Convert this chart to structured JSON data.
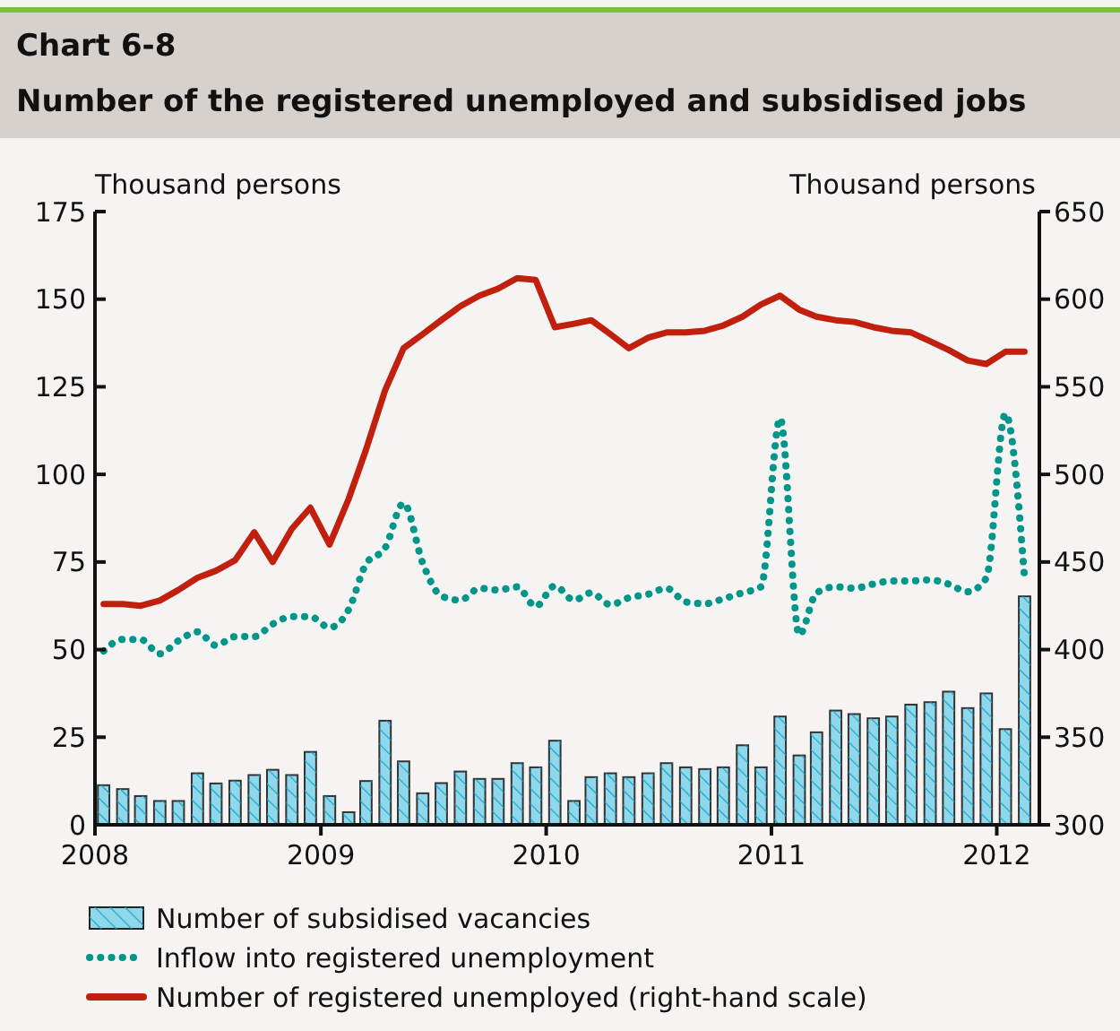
{
  "chart_data": {
    "type": "bar",
    "title": "Chart 6-8",
    "subtitle": "Number of the registered unemployed and subsidised jobs",
    "ylabel": "Thousand persons",
    "y2label": "Thousand persons",
    "x": [
      "2008-01-15",
      "2008-02-15",
      "2008-03-15",
      "2008-04-15",
      "2008-05-15",
      "2008-06-15",
      "2008-07-15",
      "2008-08-15",
      "2008-09-15",
      "2008-10-15",
      "2008-11-15",
      "2008-12-15",
      "2009-01-15",
      "2009-02-15",
      "2009-03-15",
      "2009-04-15",
      "2009-05-15",
      "2009-06-15",
      "2009-07-15",
      "2009-08-15",
      "2009-09-15",
      "2009-10-15",
      "2009-11-15",
      "2009-12-15",
      "2010-01-15",
      "2010-02-15",
      "2010-03-15",
      "2010-04-15",
      "2010-05-15",
      "2010-06-15",
      "2010-07-15",
      "2010-08-15",
      "2010-09-15",
      "2010-10-15",
      "2010-11-15",
      "2010-12-15",
      "2011-01-15",
      "2011-02-15",
      "2011-03-15",
      "2011-04-15",
      "2011-05-15",
      "2011-06-15",
      "2011-07-15",
      "2011-08-15",
      "2011-09-15",
      "2011-10-15",
      "2011-11-15",
      "2011-12-15",
      "2012-01-15",
      "2012-02-15"
    ],
    "xlim": [
      "2008-01-01",
      "2012-03-10"
    ],
    "xticks": [
      {
        "value": "2008-01-01",
        "label": "2008"
      },
      {
        "value": "2009-01-01",
        "label": "2009"
      },
      {
        "value": "2010-01-01",
        "label": "2010"
      },
      {
        "value": "2011-01-01",
        "label": "2011"
      },
      {
        "value": "2012-01-01",
        "label": "2012"
      }
    ],
    "ylim": [
      0,
      175
    ],
    "yticks": [
      0,
      25,
      50,
      75,
      100,
      125,
      150,
      175
    ],
    "y2lim": [
      300,
      650
    ],
    "y2ticks": [
      300,
      350,
      400,
      450,
      500,
      550,
      600,
      650
    ],
    "grid": false,
    "legend": "bottom",
    "series": [
      {
        "name": "Number of subsidised vacancies",
        "color": "#8fd8ec",
        "values": [
          11.3,
          10.2,
          8.2,
          6.8,
          6.8,
          14.7,
          11.8,
          12.6,
          14.2,
          15.7,
          14.2,
          20.8,
          8.2,
          3.6,
          12.5,
          29.7,
          18.1,
          9.0,
          11.9,
          15.2,
          13.1,
          13.1,
          17.6,
          16.4,
          24.0,
          6.8,
          13.6,
          14.7,
          13.6,
          14.7,
          17.6,
          16.4,
          15.9,
          16.4,
          22.7,
          16.4,
          30.9,
          19.8,
          26.4,
          32.6,
          31.6,
          30.4,
          30.9,
          34.3,
          35.0,
          38.0,
          33.3,
          37.5,
          27.3,
          65.2
        ]
      },
      {
        "name": "Inflow into registered unemployment",
        "type": "line",
        "line_style": "dotted",
        "color": "#00968a",
        "values": [
          49.6,
          52.9,
          52.9,
          48.8,
          52.5,
          55.1,
          51.2,
          53.7,
          53.7,
          57.3,
          59.4,
          59.4,
          56.3,
          61.4,
          74.4,
          79.0,
          91.8,
          74.7,
          65.3,
          64.1,
          67.5,
          67.0,
          67.9,
          62.3,
          68.2,
          64.1,
          66.2,
          62.8,
          64.8,
          65.8,
          67.5,
          63.6,
          63.1,
          64.5,
          66.2,
          67.9,
          116,
          54.2,
          66.2,
          67.9,
          67.5,
          68.7,
          69.6,
          69.6,
          69.9,
          68.7,
          66.5,
          70.4,
          117.3,
          70.4
        ]
      },
      {
        "name": "Number of registered unemployed (right-hand scale)",
        "type": "line",
        "line_style": "solid",
        "axis": "y2",
        "color": "#c0200d",
        "values": [
          426,
          426,
          425,
          428,
          434,
          441,
          445,
          451,
          467,
          450,
          469,
          481,
          460,
          486,
          514,
          548,
          572,
          580,
          588,
          596,
          602,
          606,
          612,
          611,
          584,
          586,
          588,
          580,
          572,
          578,
          581,
          581,
          582,
          585,
          590,
          597,
          602,
          594,
          590,
          588,
          587,
          584,
          582,
          581,
          576,
          571,
          565,
          563,
          570,
          570
        ]
      }
    ]
  }
}
